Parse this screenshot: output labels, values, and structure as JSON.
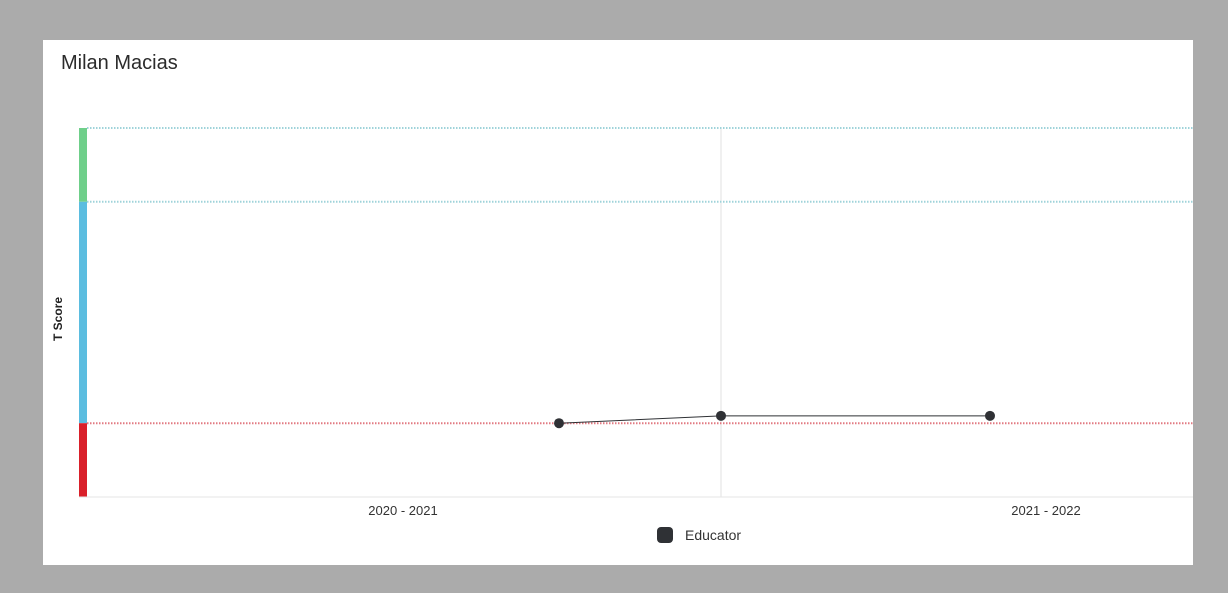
{
  "title": "Milan Macias",
  "chart_data": {
    "type": "line",
    "ylabel": "T Score",
    "categories": [
      "2020 - 2021",
      "2021 - 2022"
    ],
    "series": [
      {
        "name": "Educator",
        "color": "#2f3135",
        "points": [
          {
            "x": "2020 - 2021",
            "y": 40
          },
          {
            "x": "between 2020 - 2021 and 2021 - 2022",
            "y": 41
          },
          {
            "x": "2021 - 2022",
            "y": 41
          }
        ]
      }
    ],
    "bands": [
      {
        "from": 70,
        "to": 80,
        "color": "#6fcf8a"
      },
      {
        "from": 40,
        "to": 70,
        "color": "#5bbde0"
      },
      {
        "from": 30,
        "to": 40,
        "color": "#d9202a"
      }
    ],
    "ylim": [
      30,
      80
    ],
    "threshold_lines": [
      {
        "y": 80,
        "color": "#9fd3da"
      },
      {
        "y": 70,
        "color": "#9fd3da"
      },
      {
        "y": 40,
        "color": "#e27a82"
      }
    ],
    "legend_position": "bottom-center",
    "grid": "vertical-center"
  }
}
